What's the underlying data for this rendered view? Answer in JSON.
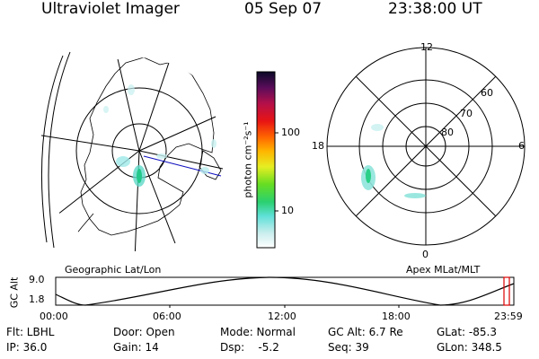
{
  "header": {
    "instrument": "Ultraviolet Imager",
    "date": "05 Sep 07",
    "time": "23:38:00 UT"
  },
  "colorbar": {
    "unit_label": "photon cm⁻²s⁻¹",
    "ticks": [
      "100",
      "10"
    ]
  },
  "geo_map": {
    "caption": "Geographic Lat/Lon"
  },
  "mlt_map": {
    "caption": "Apex MLat/MLT",
    "mlt_labels": {
      "top": "12",
      "bottom": "0",
      "left": "18",
      "right": "6"
    },
    "lat_labels": [
      "60",
      "70",
      "80"
    ]
  },
  "orbit_plot": {
    "ylabel": "GC Alt",
    "yticks": [
      "9.0",
      "1.8"
    ],
    "xticks": [
      "00:00",
      "06:00",
      "12:00",
      "18:00",
      "23:59"
    ]
  },
  "status": {
    "flt": "Flt: LBHL",
    "door": "Door: Open",
    "mode": "Mode: Normal",
    "gc_alt": "GC Alt: 6.7 Re",
    "glat": "GLat: -85.3",
    "ip": "IP: 36.0",
    "gain": "Gain: 14",
    "dsp": "Dsp:    -5.2",
    "seq": "Seq: 39",
    "glon": "GLon: 348.5"
  },
  "colors": {
    "aurora_cyan": "#9fe8e8",
    "aurora_green": "#22c88a",
    "orbit_marker": "#dd0000"
  }
}
